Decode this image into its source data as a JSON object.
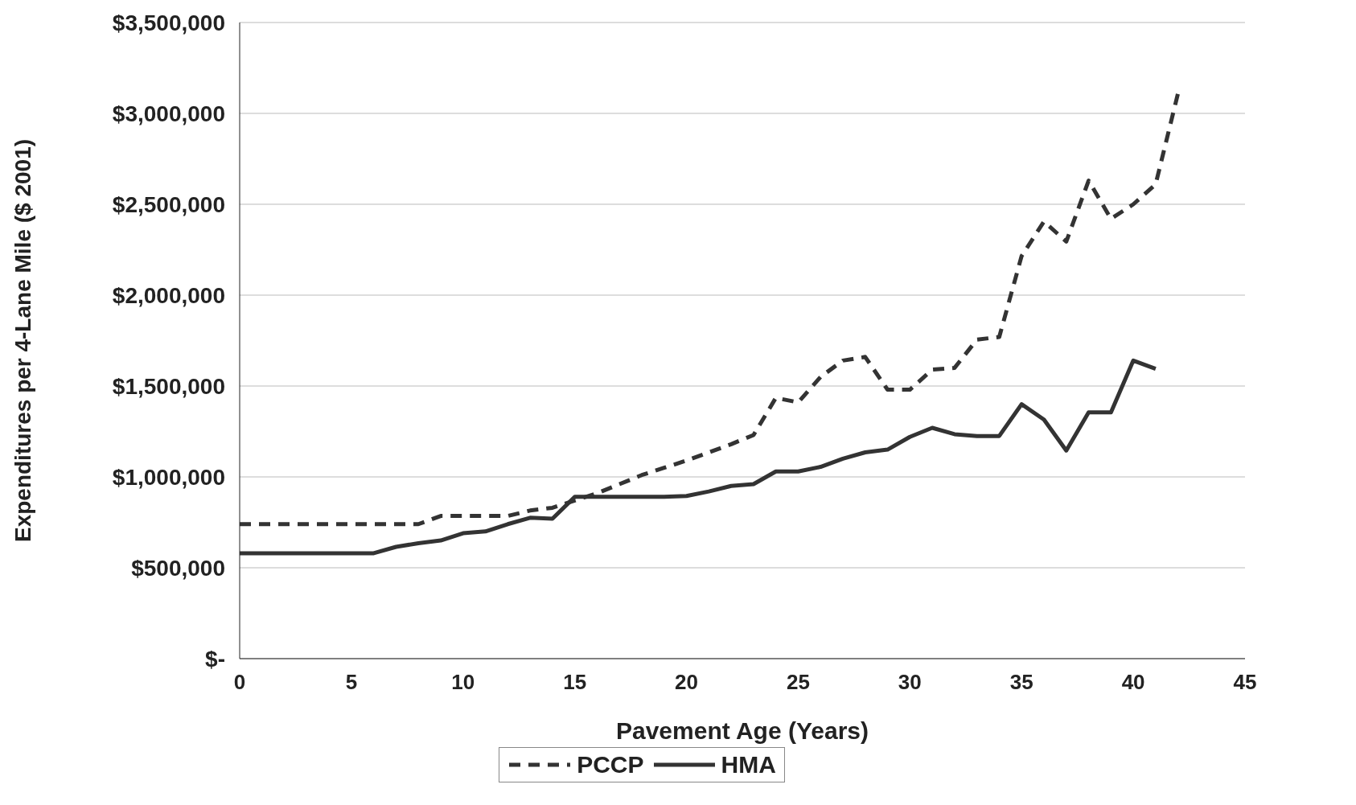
{
  "chart_data": {
    "type": "line",
    "xlabel": "Pavement Age (Years)",
    "ylabel": "Expenditures per 4-Lane Mile ($ 2001)",
    "xlim": [
      0,
      45
    ],
    "xticks": [
      0,
      5,
      10,
      15,
      20,
      25,
      30,
      35,
      40,
      45
    ],
    "ylim": [
      0,
      3500000
    ],
    "yticks": [
      {
        "value": 0,
        "label": "$-"
      },
      {
        "value": 500000,
        "label": "$500,000"
      },
      {
        "value": 1000000,
        "label": "$1,000,000"
      },
      {
        "value": 1500000,
        "label": "$1,500,000"
      },
      {
        "value": 2000000,
        "label": "$2,000,000"
      },
      {
        "value": 2500000,
        "label": "$2,500,000"
      },
      {
        "value": 3000000,
        "label": "$3,000,000"
      },
      {
        "value": 3500000,
        "label": "$3,500,000"
      }
    ],
    "grid": "y",
    "legend": "bottom",
    "marker": "none",
    "series": [
      {
        "name": "PCCP",
        "color": "#333333",
        "line_style": "dashed",
        "x": [
          0,
          1,
          2,
          3,
          4,
          5,
          6,
          7,
          8,
          9,
          10,
          11,
          12,
          13,
          14,
          15,
          16,
          17,
          18,
          19,
          20,
          21,
          22,
          23,
          24,
          25,
          26,
          27,
          28,
          29,
          30,
          31,
          32,
          33,
          34,
          35,
          36,
          37,
          38,
          39,
          40,
          41,
          42
        ],
        "values": [
          740000,
          740000,
          740000,
          740000,
          740000,
          740000,
          740000,
          740000,
          740000,
          785000,
          785000,
          785000,
          785000,
          815000,
          830000,
          870000,
          910000,
          960000,
          1010000,
          1050000,
          1090000,
          1135000,
          1180000,
          1230000,
          1435000,
          1410000,
          1550000,
          1640000,
          1660000,
          1480000,
          1480000,
          1590000,
          1600000,
          1755000,
          1770000,
          2215000,
          2405000,
          2295000,
          2630000,
          2420000,
          2500000,
          2610000,
          3110000
        ]
      },
      {
        "name": "HMA",
        "color": "#333333",
        "line_style": "solid",
        "x": [
          0,
          1,
          2,
          3,
          4,
          5,
          6,
          7,
          8,
          9,
          10,
          11,
          12,
          13,
          14,
          15,
          16,
          17,
          18,
          19,
          20,
          21,
          22,
          23,
          24,
          25,
          26,
          27,
          28,
          29,
          30,
          31,
          32,
          33,
          34,
          35,
          36,
          37,
          38,
          39,
          40,
          41
        ],
        "values": [
          580000,
          580000,
          580000,
          580000,
          580000,
          580000,
          580000,
          615000,
          635000,
          650000,
          690000,
          700000,
          740000,
          775000,
          770000,
          890000,
          890000,
          890000,
          890000,
          890000,
          895000,
          920000,
          950000,
          960000,
          1030000,
          1030000,
          1055000,
          1100000,
          1135000,
          1150000,
          1220000,
          1270000,
          1235000,
          1225000,
          1225000,
          1400000,
          1315000,
          1145000,
          1355000,
          1355000,
          1640000,
          1595000
        ]
      }
    ]
  }
}
